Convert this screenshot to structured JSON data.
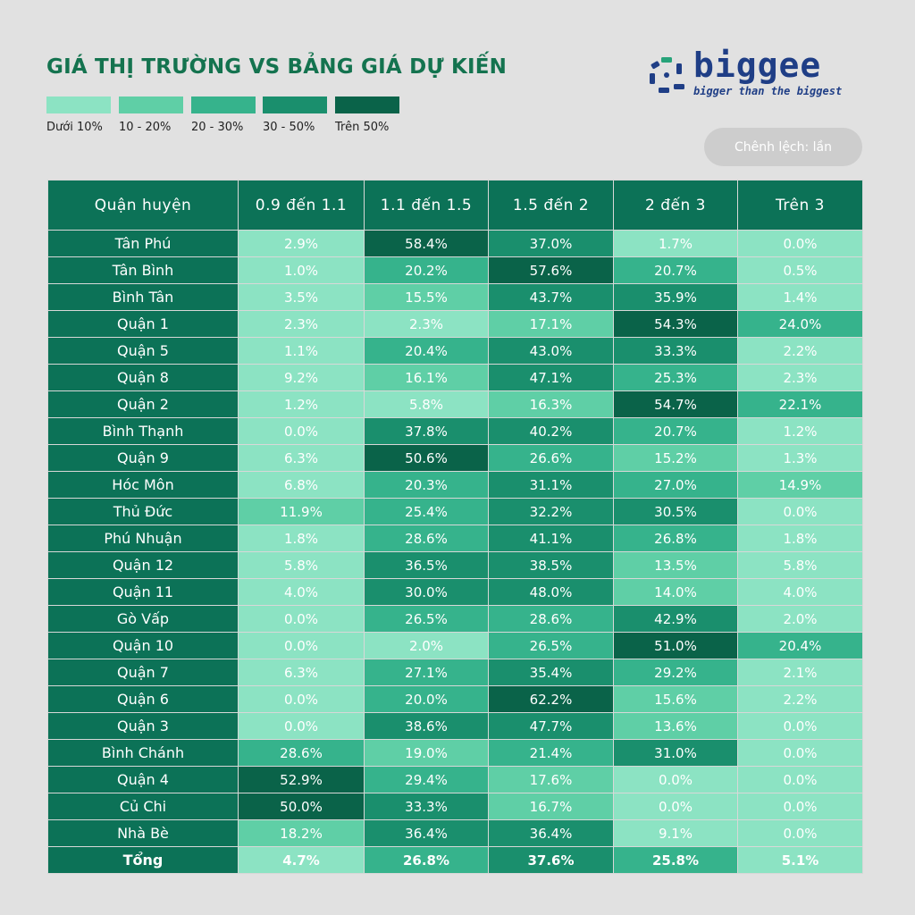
{
  "title": "GIÁ THỊ TRƯỜNG VS BẢNG GIÁ DỰ KIẾN",
  "legend": [
    {
      "label": "Dưới 10%",
      "color": "#8ce3c3"
    },
    {
      "label": "10 - 20%",
      "color": "#5fcfa6"
    },
    {
      "label": "20 - 30%",
      "color": "#36b38c"
    },
    {
      "label": "30 - 50%",
      "color": "#1a8f6d"
    },
    {
      "label": "Trên 50%",
      "color": "#0a6349"
    }
  ],
  "logo": {
    "name": "biggee",
    "tagline": "bigger than the biggest",
    "color": "#1f3e86"
  },
  "unit_note": "Chênh lệch: lần",
  "chart_data": {
    "type": "table",
    "title": "GIÁ THỊ TRƯỜNG VS BẢNG GIÁ DỰ KIẾN",
    "columns": [
      "Quận huyện",
      "0.9 đến 1.1",
      "1.1 đến 1.5",
      "1.5 đến 2",
      "2 đến 3",
      "Trên 3"
    ],
    "rows": [
      {
        "name": "Tân Phú",
        "values": [
          "2.9%",
          "58.4%",
          "37.0%",
          "1.7%",
          "0.0%"
        ]
      },
      {
        "name": "Tân Bình",
        "values": [
          "1.0%",
          "20.2%",
          "57.6%",
          "20.7%",
          "0.5%"
        ]
      },
      {
        "name": "Bình Tân",
        "values": [
          "3.5%",
          "15.5%",
          "43.7%",
          "35.9%",
          "1.4%"
        ]
      },
      {
        "name": "Quận 1",
        "values": [
          "2.3%",
          "2.3%",
          "17.1%",
          "54.3%",
          "24.0%"
        ]
      },
      {
        "name": "Quận 5",
        "values": [
          "1.1%",
          "20.4%",
          "43.0%",
          "33.3%",
          "2.2%"
        ]
      },
      {
        "name": "Quận 8",
        "values": [
          "9.2%",
          "16.1%",
          "47.1%",
          "25.3%",
          "2.3%"
        ]
      },
      {
        "name": "Quận 2",
        "values": [
          "1.2%",
          "5.8%",
          "16.3%",
          "54.7%",
          "22.1%"
        ]
      },
      {
        "name": "Bình Thạnh",
        "values": [
          "0.0%",
          "37.8%",
          "40.2%",
          "20.7%",
          "1.2%"
        ]
      },
      {
        "name": "Quận 9",
        "values": [
          "6.3%",
          "50.6%",
          "26.6%",
          "15.2%",
          "1.3%"
        ]
      },
      {
        "name": "Hóc Môn",
        "values": [
          "6.8%",
          "20.3%",
          "31.1%",
          "27.0%",
          "14.9%"
        ]
      },
      {
        "name": "Thủ Đức",
        "values": [
          "11.9%",
          "25.4%",
          "32.2%",
          "30.5%",
          "0.0%"
        ]
      },
      {
        "name": "Phú Nhuận",
        "values": [
          "1.8%",
          "28.6%",
          "41.1%",
          "26.8%",
          "1.8%"
        ]
      },
      {
        "name": "Quận 12",
        "values": [
          "5.8%",
          "36.5%",
          "38.5%",
          "13.5%",
          "5.8%"
        ]
      },
      {
        "name": "Quận 11",
        "values": [
          "4.0%",
          "30.0%",
          "48.0%",
          "14.0%",
          "4.0%"
        ]
      },
      {
        "name": "Gò Vấp",
        "values": [
          "0.0%",
          "26.5%",
          "28.6%",
          "42.9%",
          "2.0%"
        ]
      },
      {
        "name": "Quận 10",
        "values": [
          "0.0%",
          "2.0%",
          "26.5%",
          "51.0%",
          "20.4%"
        ]
      },
      {
        "name": "Quận 7",
        "values": [
          "6.3%",
          "27.1%",
          "35.4%",
          "29.2%",
          "2.1%"
        ]
      },
      {
        "name": "Quận 6",
        "values": [
          "0.0%",
          "20.0%",
          "62.2%",
          "15.6%",
          "2.2%"
        ]
      },
      {
        "name": "Quận 3",
        "values": [
          "0.0%",
          "38.6%",
          "47.7%",
          "13.6%",
          "0.0%"
        ]
      },
      {
        "name": "Bình Chánh",
        "values": [
          "28.6%",
          "19.0%",
          "21.4%",
          "31.0%",
          "0.0%"
        ]
      },
      {
        "name": "Quận 4",
        "values": [
          "52.9%",
          "29.4%",
          "17.6%",
          "0.0%",
          "0.0%"
        ]
      },
      {
        "name": "Củ Chi",
        "values": [
          "50.0%",
          "33.3%",
          "16.7%",
          "0.0%",
          "0.0%"
        ]
      },
      {
        "name": "Nhà Bè",
        "values": [
          "18.2%",
          "36.4%",
          "36.4%",
          "9.1%",
          "0.0%"
        ]
      }
    ],
    "total": {
      "name": "Tổng",
      "values": [
        "4.7%",
        "26.8%",
        "37.6%",
        "25.8%",
        "5.1%"
      ]
    }
  }
}
